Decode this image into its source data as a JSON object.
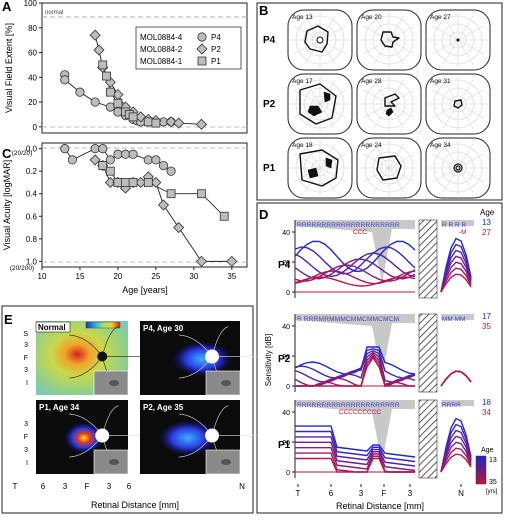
{
  "panels": {
    "A": {
      "letter": "A",
      "ylabel": "Visual Field Extent [%]",
      "yticks": [
        "0",
        "20",
        "40",
        "60",
        "80",
        "100"
      ],
      "normal_label": "normal",
      "legend": [
        {
          "name": "MOL0884-4",
          "tag": "P4",
          "marker": "circle"
        },
        {
          "name": "MOL0884-2",
          "tag": "P2",
          "marker": "diamond"
        },
        {
          "name": "MOL0884-1",
          "tag": "P1",
          "marker": "square"
        }
      ]
    },
    "B": {
      "letter": "B",
      "rows": [
        {
          "label": "P4",
          "ages": [
            "Age 13",
            "Age 20",
            "Age 27"
          ]
        },
        {
          "label": "P2",
          "ages": [
            "Age 17",
            "Age 28",
            "Age 31"
          ]
        },
        {
          "label": "P1",
          "ages": [
            "Age 18",
            "Age 24",
            "Age 34"
          ]
        }
      ]
    },
    "C": {
      "letter": "C",
      "ylabel": "Visual Acuity [logMAR]",
      "yticks": [
        "0.0",
        "0.2",
        "0.4",
        "0.6",
        "0.8",
        "1.0"
      ],
      "ref_top": "(20/20)",
      "ref_bottom": "(20/200)",
      "xticks": [
        "10",
        "15",
        "20",
        "25",
        "30",
        "35"
      ],
      "xlabel": "Age [years]"
    },
    "D": {
      "letter": "D",
      "age_header": "Age",
      "ylabel": "Sensitivity [dB]",
      "yticks": [
        "0",
        "20",
        "40"
      ],
      "xticks": [
        "T",
        "6",
        "3",
        "F",
        "3",
        "N"
      ],
      "xlabel": "Retinal Distance [mm]",
      "colorbar": {
        "title": "Age",
        "top": "13",
        "bottom": "35",
        "unit": "[yrs]"
      },
      "rows": [
        {
          "label": "P4",
          "age_young": "13",
          "age_old": "27",
          "top_letters": "RRRRRRRRRRRRRRRRRRRRR",
          "red_letters": "CCC",
          "nasal_top": "R R R R",
          "nasal_red": "-M"
        },
        {
          "label": "P2",
          "age_young": "17",
          "age_old": "35",
          "top_letters": "R   RRRMRMMMCMMCMMCMCM",
          "red_letters": "",
          "nasal_top": "MM   MM",
          "nasal_red": ""
        },
        {
          "label": "P1",
          "age_young": "18",
          "age_old": "34",
          "top_letters": "RRRRRRRRRRRRRRRRRRRRR",
          "red_letters": "CCCCCCCCC",
          "nasal_top": "RRRR",
          "nasal_red": ""
        }
      ]
    },
    "E": {
      "letter": "E",
      "maps": [
        {
          "label": "Normal"
        },
        {
          "label": "P4, Age 30"
        },
        {
          "label": "P1, Age 34"
        },
        {
          "label": "P2, Age 35"
        }
      ],
      "yticks_top": [
        "S",
        "3",
        "F",
        "3",
        "I"
      ],
      "yticks_bottom": [
        "3",
        "F",
        "3",
        "I"
      ],
      "xticks": [
        "T",
        "6",
        "3",
        "F",
        "3",
        "6",
        "N"
      ],
      "xlabel": "Retinal Distance [mm]"
    }
  },
  "chart_data": [
    {
      "type": "line",
      "panel": "A",
      "ylabel": "Visual Field Extent [%]",
      "ylim": [
        -5,
        100
      ],
      "xlim": [
        10,
        37
      ],
      "series": [
        {
          "name": "MOL0884-4",
          "marker": "circle",
          "x": [
            13,
            13,
            15,
            17,
            19,
            20,
            21,
            22,
            22.5,
            23,
            24,
            25,
            26,
            27
          ],
          "y": [
            42,
            38,
            28,
            20,
            16,
            12,
            9,
            6,
            5,
            4,
            4,
            4,
            4,
            4
          ]
        },
        {
          "name": "MOL0884-2",
          "marker": "diamond",
          "x": [
            17,
            17.5,
            18,
            19,
            20,
            21,
            22,
            23,
            24,
            25,
            27,
            28,
            31
          ],
          "y": [
            74,
            62,
            48,
            36,
            26,
            16,
            12,
            8,
            6,
            5,
            4,
            3,
            2
          ]
        },
        {
          "name": "MOL0884-1",
          "marker": "square",
          "x": [
            18,
            18.5,
            19,
            20,
            21,
            21.5,
            22,
            24,
            25
          ],
          "y": [
            50,
            41,
            28,
            19,
            12,
            10,
            8,
            4,
            3
          ]
        }
      ]
    },
    {
      "type": "line",
      "panel": "C",
      "ylabel": "Visual Acuity [logMAR]",
      "xlabel": "Age [years]",
      "ylim": [
        -0.05,
        1.05
      ],
      "xlim": [
        10,
        37
      ],
      "series": [
        {
          "name": "MOL0884-4",
          "marker": "circle",
          "x": [
            13,
            14,
            17,
            18,
            19,
            20,
            21,
            22,
            24,
            25,
            26,
            27
          ],
          "y": [
            0.0,
            0.1,
            0.0,
            0.0,
            0.1,
            0.05,
            0.05,
            0.05,
            0.1,
            0.1,
            0.15,
            0.2
          ]
        },
        {
          "name": "MOL0884-2",
          "marker": "diamond",
          "x": [
            17,
            18,
            19,
            20,
            21,
            22,
            23,
            24,
            25,
            26,
            28,
            31,
            35
          ],
          "y": [
            0.1,
            0.15,
            0.3,
            0.3,
            0.35,
            0.3,
            0.3,
            0.25,
            0.3,
            0.5,
            0.7,
            1.0,
            1.0
          ]
        },
        {
          "name": "MOL0884-1",
          "marker": "square",
          "x": [
            18,
            19,
            20,
            21,
            22,
            24,
            27,
            31,
            34
          ],
          "y": [
            0.15,
            0.2,
            0.3,
            0.3,
            0.3,
            0.3,
            0.4,
            0.4,
            0.6
          ]
        }
      ]
    }
  ]
}
